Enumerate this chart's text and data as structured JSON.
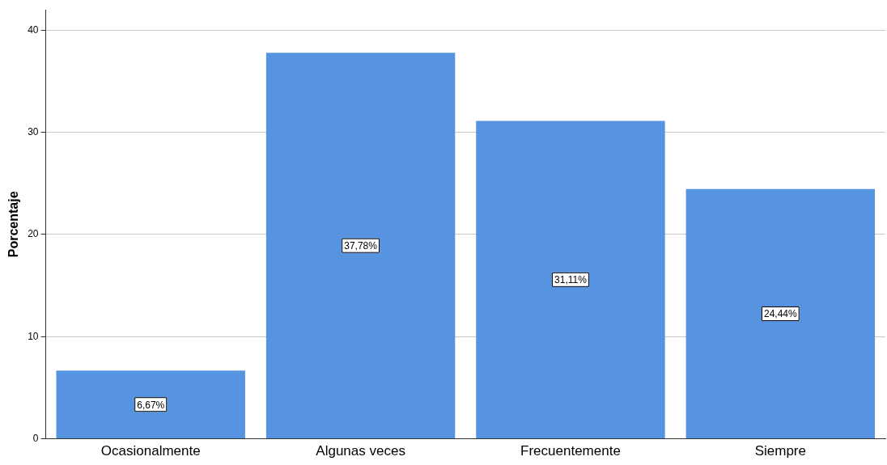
{
  "chart_data": {
    "type": "bar",
    "ylabel": "Porcentaje",
    "categories": [
      "Ocasionalmente",
      "Algunas veces",
      "Frecuentemente",
      "Siempre"
    ],
    "values": [
      6.67,
      37.78,
      31.11,
      24.44
    ],
    "value_labels": [
      "6,67%",
      "37,78%",
      "31,11%",
      "24,44%"
    ],
    "color": "#5694e2",
    "ylim": [
      0,
      42
    ],
    "yticks": [
      0,
      10,
      20,
      30,
      40
    ],
    "grid": "y",
    "legend": false
  }
}
